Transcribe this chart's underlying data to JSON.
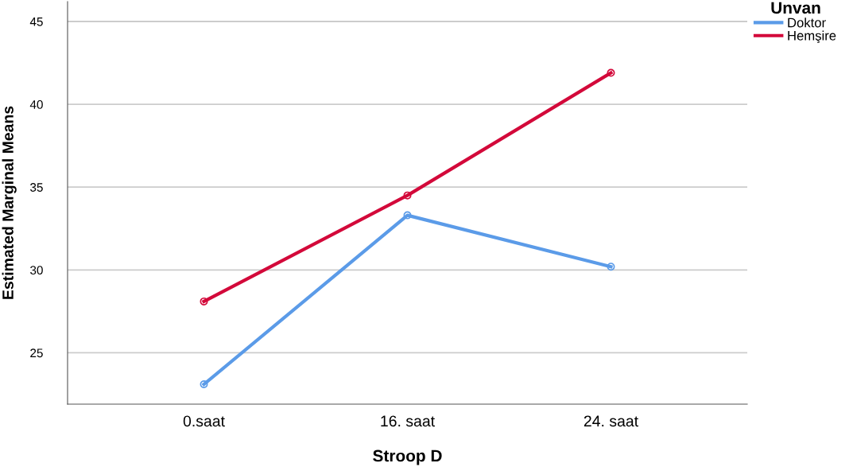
{
  "chart_data": {
    "type": "line",
    "xlabel": "Stroop D",
    "ylabel": "Estimated Marginal Means",
    "legend_title": "Unvan",
    "categories": [
      "0.saat",
      "16. saat",
      "24. saat"
    ],
    "series": [
      {
        "name": "Doktor",
        "color": "#5b9be8",
        "values": [
          23.1,
          33.3,
          30.2
        ]
      },
      {
        "name": "Hemşire",
        "color": "#d3093a",
        "values": [
          28.1,
          34.5,
          41.9
        ]
      }
    ],
    "ylim": [
      21.9,
      46.2
    ],
    "yticks": [
      25,
      30,
      35,
      40,
      45
    ],
    "grid": "y",
    "legend": "top right",
    "marker": "circle",
    "line_style": "solid"
  }
}
